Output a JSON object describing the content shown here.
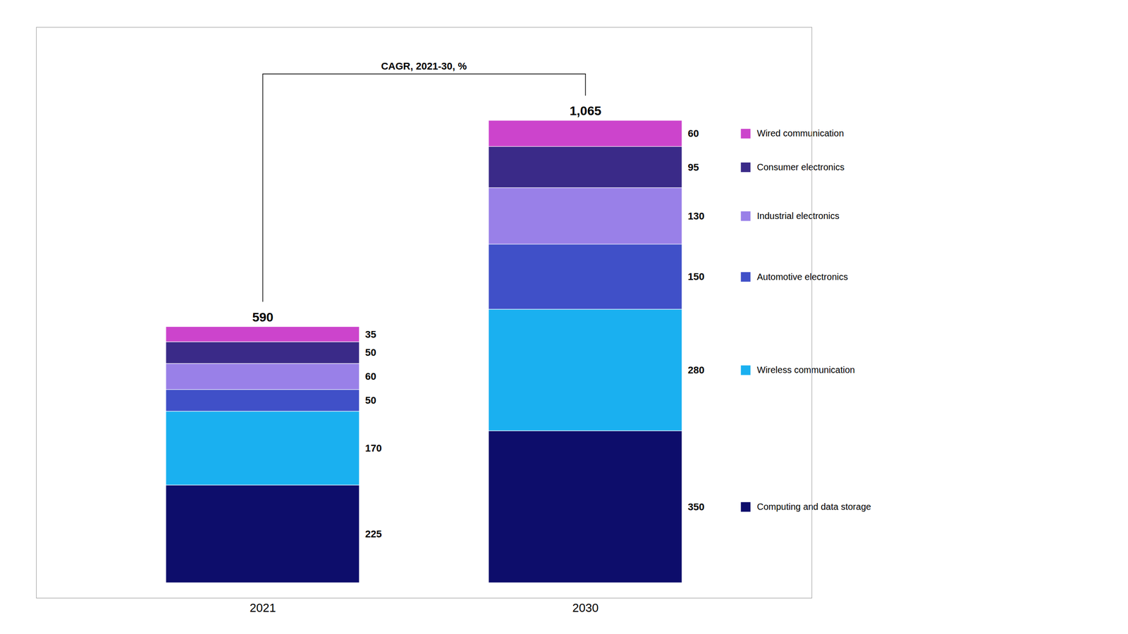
{
  "chart_data": {
    "type": "bar",
    "stacked": true,
    "categories": [
      "2021",
      "2030"
    ],
    "series": [
      {
        "name": "Computing and data storage",
        "color": "#0d0d6b",
        "values": [
          225,
          350
        ]
      },
      {
        "name": "Wireless communication",
        "color": "#1ab0f0",
        "values": [
          170,
          280
        ]
      },
      {
        "name": "Automotive electronics",
        "color": "#4050c8",
        "values": [
          50,
          150
        ]
      },
      {
        "name": "Industrial electronics",
        "color": "#9980e8",
        "values": [
          60,
          130
        ]
      },
      {
        "name": "Consumer electronics",
        "color": "#3a2a88",
        "values": [
          50,
          95
        ]
      },
      {
        "name": "Wired communication",
        "color": "#cc44cc",
        "values": [
          35,
          60
        ]
      }
    ],
    "totals": [
      590,
      1065
    ],
    "total_labels": [
      "590",
      "1,065"
    ],
    "annotations": [
      "CAGR, 2021-30, %"
    ],
    "ylim": [
      -35,
      1280
    ],
    "yticks": [],
    "tick_labels": "x",
    "data_labels": true,
    "legend": "right"
  }
}
